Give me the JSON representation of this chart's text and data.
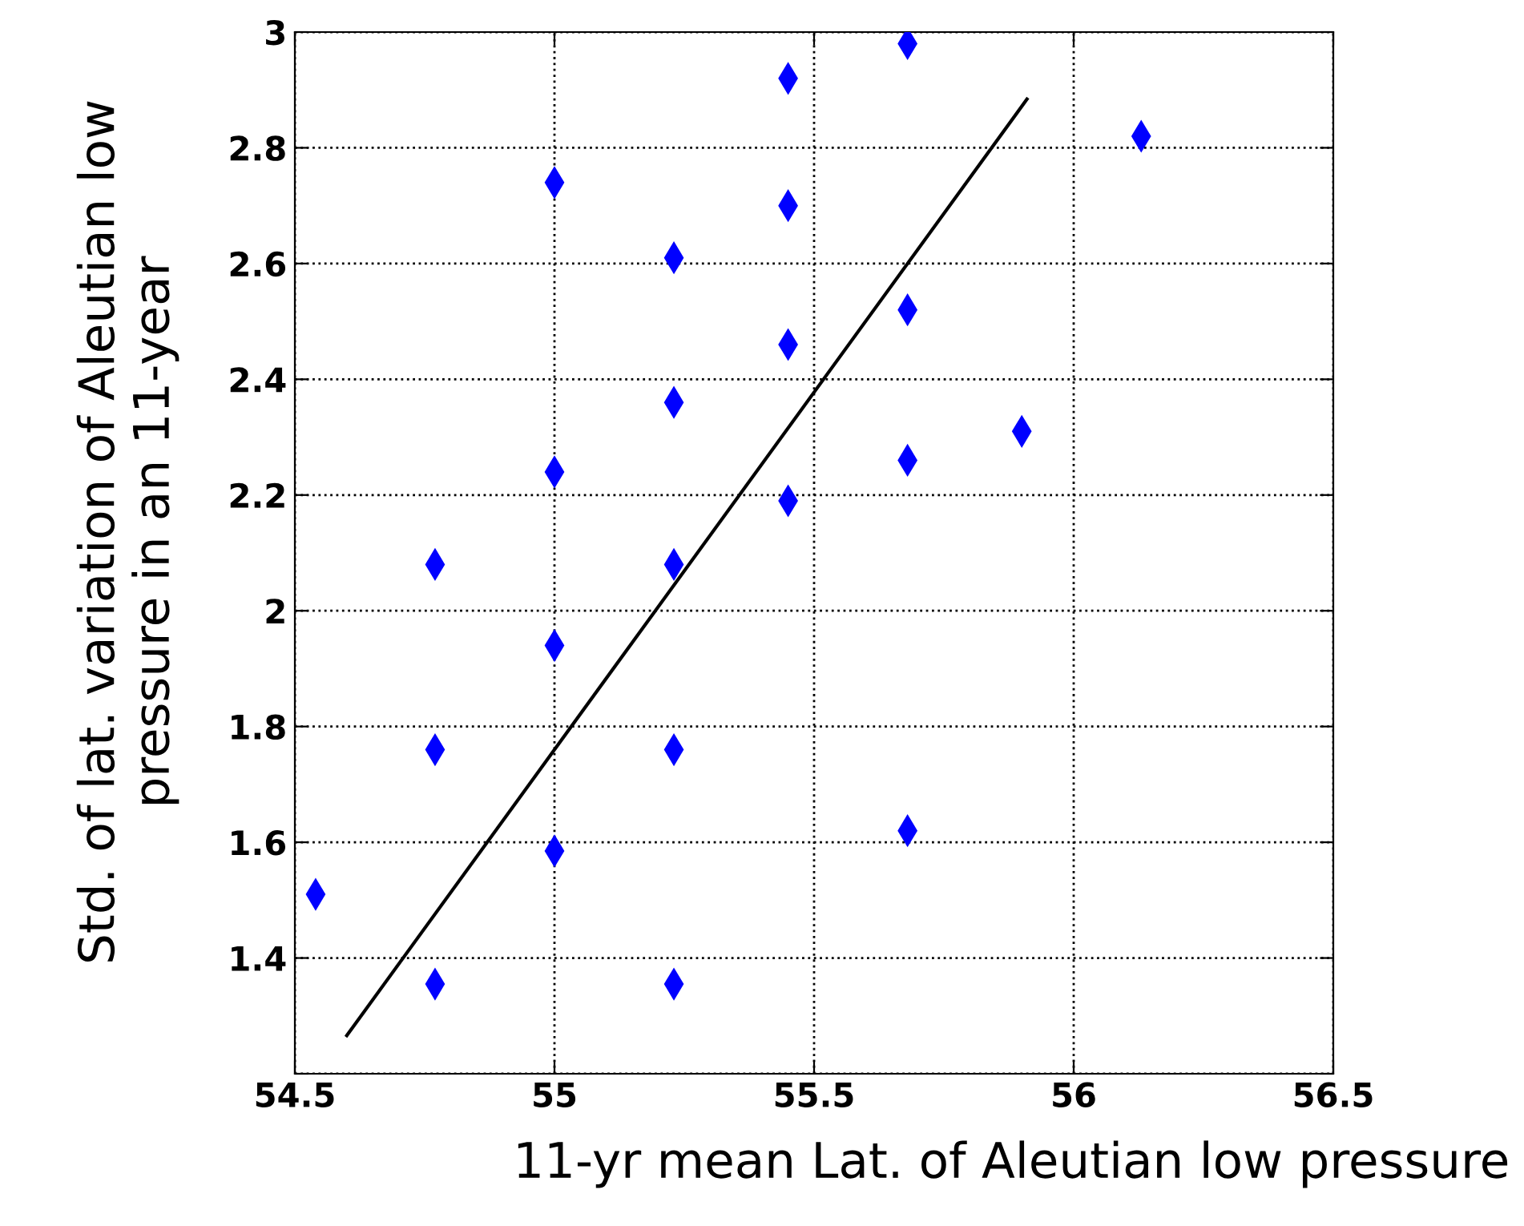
{
  "chart_data": {
    "type": "scatter",
    "xlabel": "11-yr mean Lat. of Aleutian low pressure",
    "ylabel": "Std. of lat. variation of Aleutian low\npressure in an 11-year",
    "xlim": [
      54.5,
      56.5
    ],
    "xticks": [
      54.5,
      55,
      55.5,
      56,
      56.5
    ],
    "ylim": [
      1.2,
      3
    ],
    "yticks": [
      {
        "value": 1.2,
        "label": null
      },
      1.4,
      1.6,
      1.8,
      2,
      2.2,
      2.4,
      2.6,
      2.8,
      3
    ],
    "grid": true,
    "marker": "diamond",
    "series": [
      {
        "color": "#0000ff",
        "x": [
          54.54,
          54.77,
          54.77,
          54.77,
          55.0,
          55.0,
          55.0,
          55.0,
          55.23,
          55.23,
          55.23,
          55.23,
          55.23,
          55.45,
          55.45,
          55.45,
          55.45,
          55.68,
          55.68,
          55.68,
          55.68,
          55.9,
          56.13
        ],
        "values": [
          1.51,
          2.08,
          1.76,
          1.355,
          2.74,
          2.24,
          1.94,
          1.585,
          2.61,
          2.36,
          2.08,
          1.76,
          1.355,
          2.92,
          2.7,
          2.46,
          2.19,
          2.98,
          2.52,
          2.26,
          1.62,
          2.31,
          2.82
        ]
      },
      {
        "type": "line",
        "color": "#000000",
        "marker": "none",
        "x": [
          54.6,
          55.91
        ],
        "values": [
          1.266,
          2.884
        ]
      }
    ]
  }
}
